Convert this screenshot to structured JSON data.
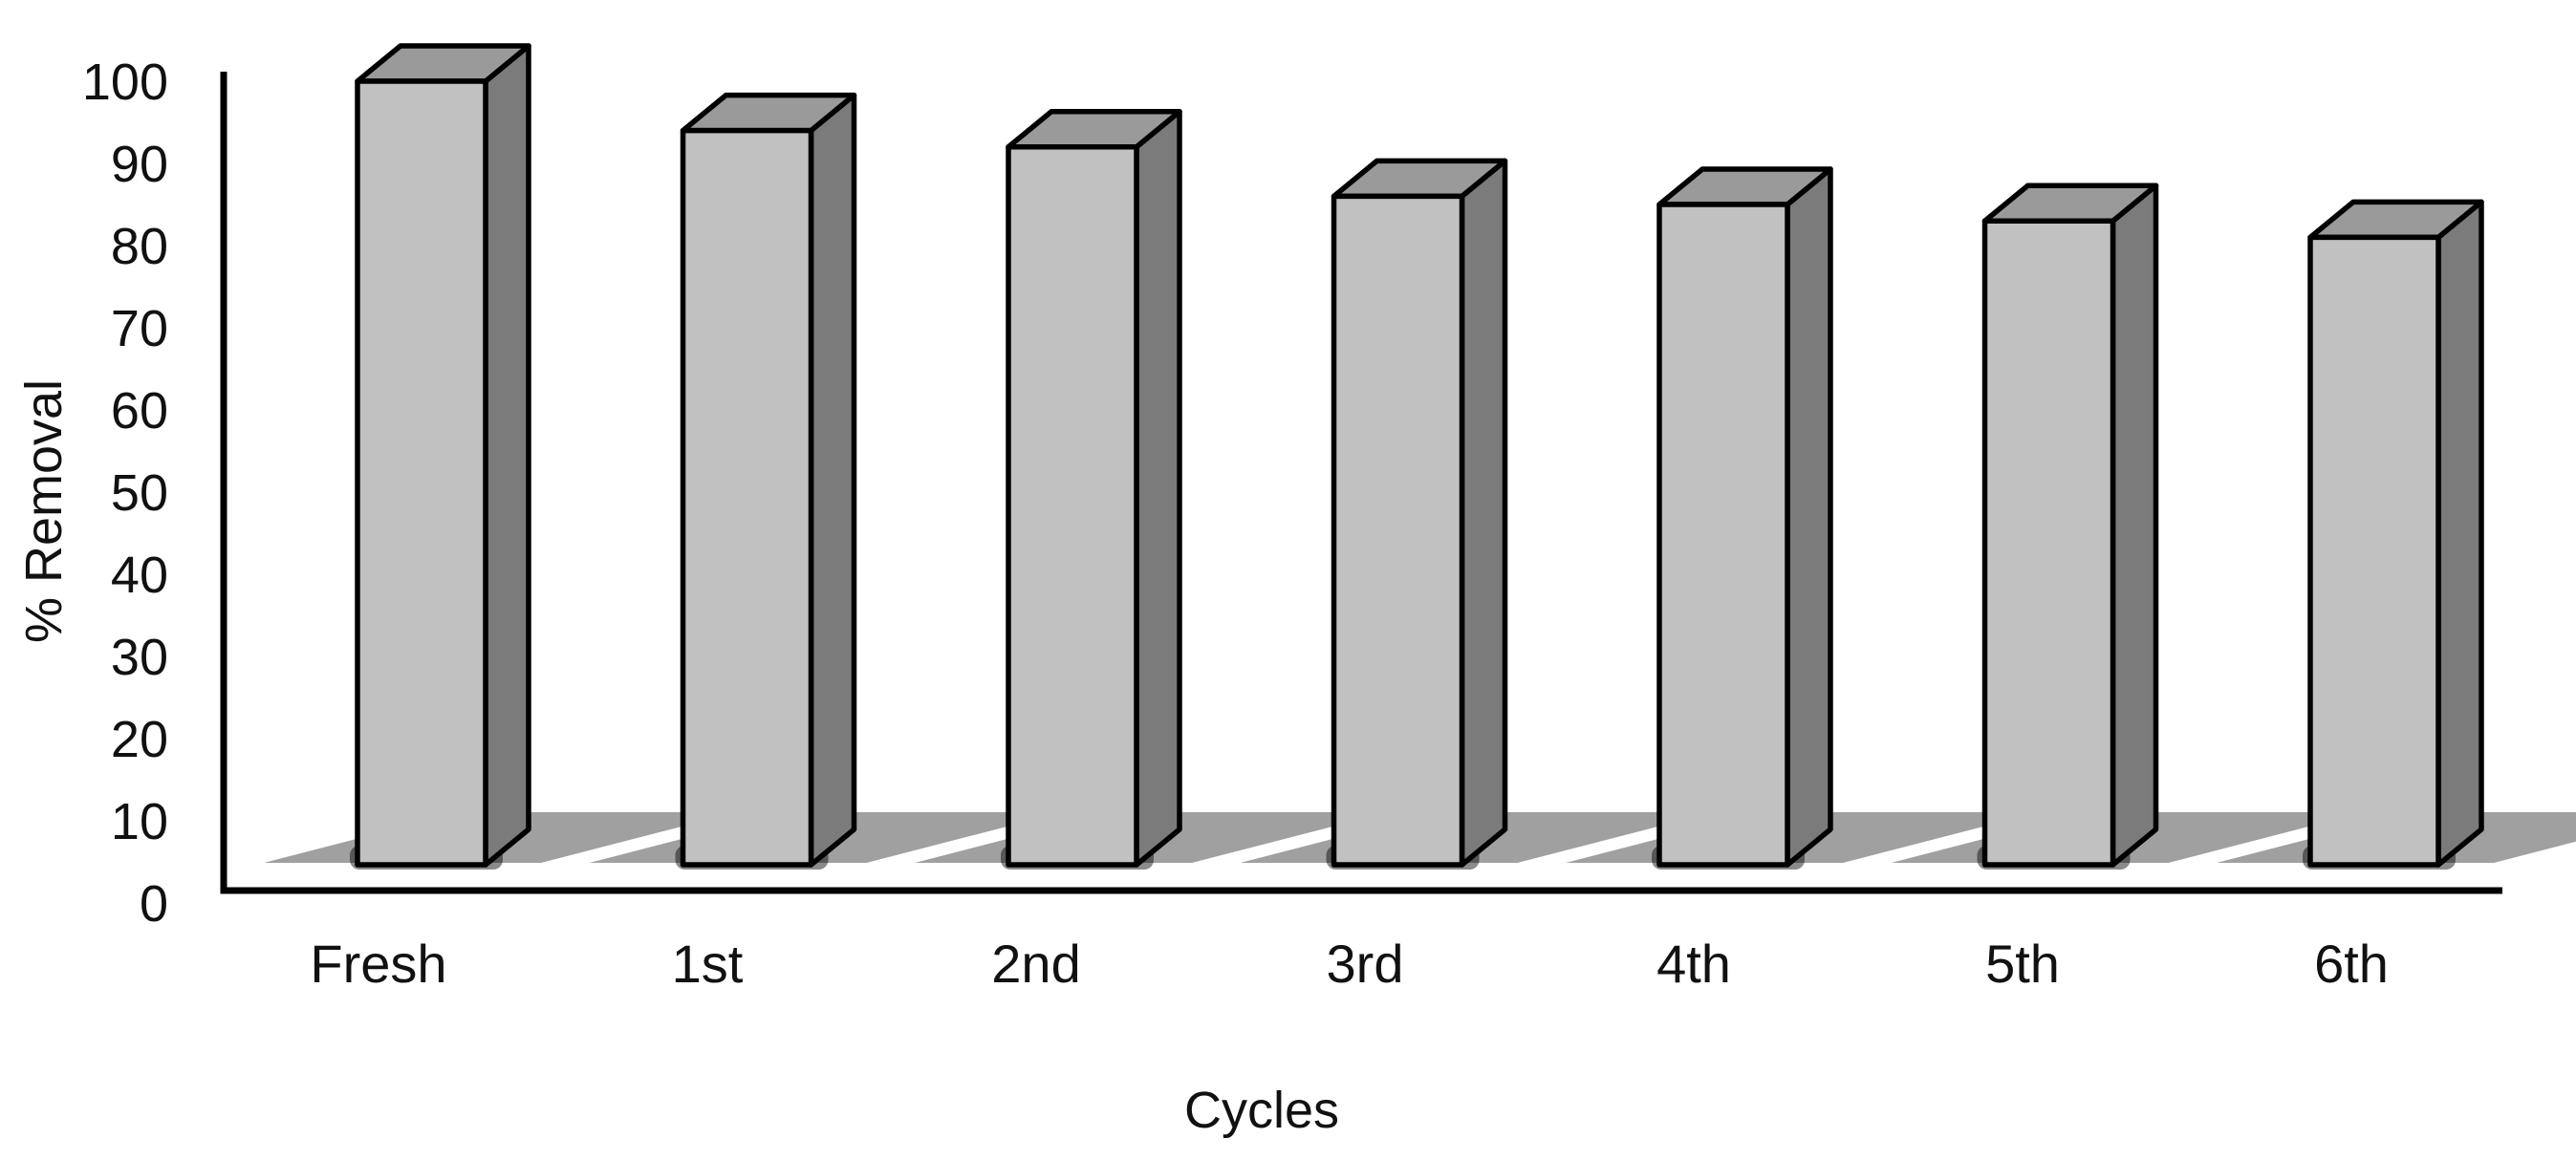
{
  "figure": {
    "ylabel": "% Removal",
    "xlabel": "Cycles"
  },
  "chart_data": {
    "type": "bar",
    "style": "3d-column",
    "categories": [
      "Fresh",
      "1st",
      "2nd",
      "3rd",
      "4th",
      "5th",
      "6th"
    ],
    "values": [
      100,
      94,
      92,
      86,
      85,
      83,
      81
    ],
    "title": "",
    "xlabel": "Cycles",
    "ylabel": "% Removal",
    "ylim": [
      0,
      100
    ],
    "ytick_step": 10,
    "ytick_labels": [
      "0",
      "10",
      "20",
      "30",
      "40",
      "50",
      "60",
      "70",
      "80",
      "90",
      "100"
    ],
    "grid": false,
    "legend": false,
    "colors": {
      "bar_front": "#c1c1c1",
      "bar_side": "#7b7b7b",
      "bar_top": "#9a9a9a",
      "bar_outline": "#000000",
      "axis": "#000000",
      "text": "#111111",
      "background": "#ffffff"
    }
  }
}
